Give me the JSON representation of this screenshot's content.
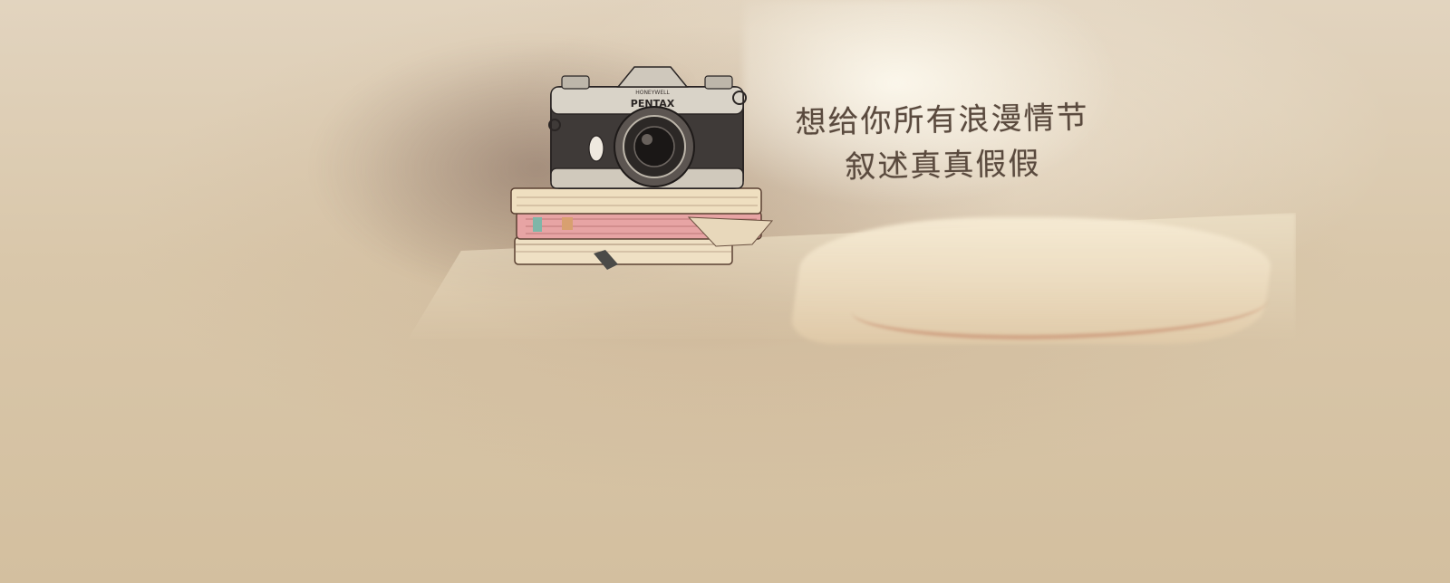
{
  "quote": {
    "line1": "想给你所有浪漫情节",
    "line2": "叙述真真假假"
  },
  "camera": {
    "brand": "PENTAX",
    "maker": "HONEYWELL"
  },
  "colors": {
    "background": "#d8c6a8",
    "text": "#5a4a3e",
    "book_pink": "#e7a4a4",
    "book_cream": "#efe0c4"
  }
}
